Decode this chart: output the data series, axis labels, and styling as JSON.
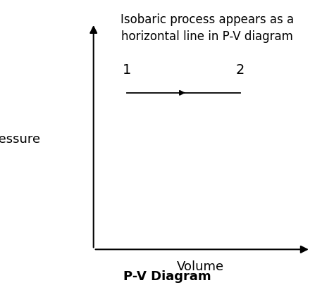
{
  "title": "P-V Diagram",
  "annotation_line1": "Isobaric process appears as a",
  "annotation_line2": "horizontal line in P-V diagram",
  "xlabel": "Volume",
  "ylabel": "Pressure",
  "label1": "1",
  "label2": "2",
  "axis_color": "#000000",
  "line_color": "#000000",
  "bg_color": "#ffffff",
  "annotation_fontsize": 12,
  "axis_label_fontsize": 13,
  "title_fontsize": 13,
  "point_label_fontsize": 14
}
